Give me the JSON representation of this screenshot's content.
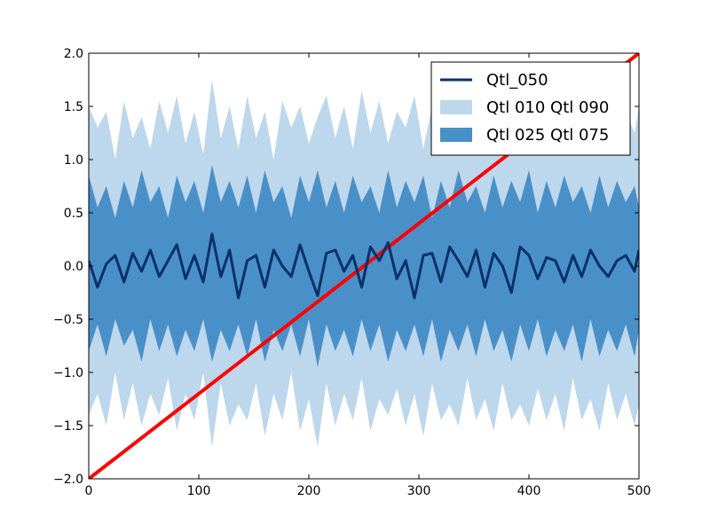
{
  "chart_data": {
    "type": "area",
    "title": "",
    "xlabel": "",
    "ylabel": "",
    "xlim": [
      0,
      500
    ],
    "ylim": [
      -2.0,
      2.0
    ],
    "xticks": [
      0,
      100,
      200,
      300,
      400,
      500
    ],
    "xtick_labels": [
      "0",
      "100",
      "200",
      "300",
      "400",
      "500"
    ],
    "yticks": [
      -2.0,
      -1.5,
      -1.0,
      -0.5,
      0.0,
      0.5,
      1.0,
      1.5,
      2.0
    ],
    "ytick_labels": [
      "−2.0",
      "−1.5",
      "−1.0",
      "−0.5",
      "0.0",
      "0.5",
      "1.0",
      "1.5",
      "2.0"
    ],
    "grid": false,
    "legend_position": "top-right",
    "series": [
      {
        "name": "Qtl_050",
        "kind": "line",
        "color": "#08306b",
        "x": [
          0,
          8,
          16,
          24,
          32,
          40,
          48,
          56,
          64,
          72,
          80,
          88,
          96,
          104,
          112,
          120,
          128,
          136,
          144,
          152,
          160,
          168,
          176,
          184,
          192,
          200,
          208,
          216,
          224,
          232,
          240,
          248,
          256,
          264,
          272,
          280,
          288,
          296,
          304,
          312,
          320,
          328,
          336,
          344,
          352,
          360,
          368,
          376,
          384,
          392,
          400,
          408,
          416,
          424,
          432,
          440,
          448,
          456,
          464,
          472,
          480,
          488,
          496,
          500
        ],
        "values": [
          0.05,
          -0.2,
          0.02,
          0.1,
          -0.15,
          0.12,
          -0.05,
          0.15,
          -0.1,
          0.05,
          0.2,
          -0.12,
          0.1,
          -0.15,
          0.3,
          -0.1,
          0.15,
          -0.3,
          0.05,
          0.1,
          -0.2,
          0.15,
          0.0,
          -0.1,
          0.2,
          -0.05,
          -0.28,
          0.12,
          0.15,
          -0.05,
          0.1,
          -0.2,
          0.18,
          0.05,
          0.22,
          -0.12,
          0.05,
          -0.3,
          0.1,
          0.12,
          -0.15,
          0.18,
          0.05,
          -0.1,
          0.15,
          -0.2,
          0.12,
          0.0,
          -0.25,
          0.18,
          0.1,
          -0.12,
          0.08,
          0.05,
          -0.15,
          0.1,
          -0.1,
          0.15,
          0.0,
          -0.1,
          0.05,
          0.1,
          -0.05,
          0.15
        ]
      },
      {
        "name": "Qtl 010 Qtl 090",
        "kind": "band",
        "color": "#bdd7ec",
        "x": [
          0,
          8,
          16,
          24,
          32,
          40,
          48,
          56,
          64,
          72,
          80,
          88,
          96,
          104,
          112,
          120,
          128,
          136,
          144,
          152,
          160,
          168,
          176,
          184,
          192,
          200,
          208,
          216,
          224,
          232,
          240,
          248,
          256,
          264,
          272,
          280,
          288,
          296,
          304,
          312,
          320,
          328,
          336,
          344,
          352,
          360,
          368,
          376,
          384,
          392,
          400,
          408,
          416,
          424,
          432,
          440,
          448,
          456,
          464,
          472,
          480,
          488,
          496,
          500
        ],
        "upper": [
          1.5,
          1.3,
          1.45,
          1.0,
          1.55,
          1.2,
          1.4,
          1.1,
          1.55,
          1.25,
          1.6,
          1.15,
          1.45,
          1.05,
          1.75,
          1.2,
          1.5,
          1.1,
          1.6,
          1.2,
          1.45,
          1.0,
          1.55,
          1.3,
          1.5,
          1.15,
          1.4,
          1.6,
          1.2,
          1.5,
          1.1,
          1.65,
          1.25,
          1.55,
          1.15,
          1.45,
          1.3,
          1.6,
          1.1,
          1.5,
          1.25,
          1.55,
          1.05,
          1.45,
          1.35,
          1.6,
          1.15,
          1.5,
          1.2,
          1.55,
          1.1,
          1.45,
          1.3,
          1.55,
          1.2,
          1.5,
          1.05,
          1.45,
          1.3,
          1.55,
          1.15,
          1.45,
          1.25,
          1.5
        ],
        "lower": [
          -1.4,
          -1.2,
          -1.5,
          -1.0,
          -1.45,
          -1.1,
          -1.5,
          -1.2,
          -1.4,
          -1.05,
          -1.55,
          -1.2,
          -1.45,
          -1.0,
          -1.7,
          -1.1,
          -1.5,
          -1.3,
          -1.45,
          -1.1,
          -1.6,
          -1.2,
          -1.45,
          -1.0,
          -1.55,
          -1.25,
          -1.7,
          -1.1,
          -1.5,
          -1.2,
          -1.45,
          -1.05,
          -1.55,
          -1.25,
          -1.4,
          -1.15,
          -1.5,
          -1.2,
          -1.6,
          -1.1,
          -1.45,
          -1.3,
          -1.5,
          -1.05,
          -1.45,
          -1.25,
          -1.55,
          -1.1,
          -1.45,
          -1.3,
          -1.5,
          -1.15,
          -1.45,
          -1.2,
          -1.55,
          -1.05,
          -1.45,
          -1.25,
          -1.55,
          -1.1,
          -1.45,
          -1.2,
          -1.5,
          -1.3
        ]
      },
      {
        "name": "Qtl 025 Qtl 075",
        "kind": "band",
        "color": "#4a90c8",
        "x": [
          0,
          8,
          16,
          24,
          32,
          40,
          48,
          56,
          64,
          72,
          80,
          88,
          96,
          104,
          112,
          120,
          128,
          136,
          144,
          152,
          160,
          168,
          176,
          184,
          192,
          200,
          208,
          216,
          224,
          232,
          240,
          248,
          256,
          264,
          272,
          280,
          288,
          296,
          304,
          312,
          320,
          328,
          336,
          344,
          352,
          360,
          368,
          376,
          384,
          392,
          400,
          408,
          416,
          424,
          432,
          440,
          448,
          456,
          464,
          472,
          480,
          488,
          496,
          500
        ],
        "upper": [
          0.85,
          0.55,
          0.75,
          0.45,
          0.8,
          0.55,
          0.9,
          0.6,
          0.75,
          0.45,
          0.85,
          0.6,
          0.8,
          0.5,
          0.95,
          0.6,
          0.8,
          0.55,
          0.85,
          0.5,
          0.9,
          0.6,
          0.75,
          0.45,
          0.85,
          0.6,
          0.9,
          0.55,
          0.8,
          0.5,
          0.85,
          0.6,
          0.75,
          0.5,
          0.9,
          0.55,
          0.8,
          0.6,
          0.85,
          0.45,
          0.8,
          0.55,
          0.9,
          0.6,
          0.75,
          0.5,
          0.85,
          0.55,
          0.8,
          0.6,
          0.9,
          0.5,
          0.8,
          0.55,
          0.85,
          0.6,
          0.75,
          0.5,
          0.85,
          0.55,
          0.8,
          0.6,
          0.75,
          0.55
        ],
        "lower": [
          -0.8,
          -0.55,
          -0.85,
          -0.5,
          -0.75,
          -0.6,
          -0.9,
          -0.5,
          -0.8,
          -0.55,
          -0.85,
          -0.6,
          -0.8,
          -0.5,
          -0.9,
          -0.6,
          -0.8,
          -0.55,
          -0.85,
          -0.5,
          -0.9,
          -0.6,
          -0.8,
          -0.55,
          -0.85,
          -0.5,
          -0.95,
          -0.55,
          -0.8,
          -0.6,
          -0.85,
          -0.5,
          -0.8,
          -0.55,
          -0.9,
          -0.6,
          -0.8,
          -0.55,
          -0.85,
          -0.5,
          -0.9,
          -0.6,
          -0.8,
          -0.55,
          -0.85,
          -0.5,
          -0.8,
          -0.6,
          -0.9,
          -0.55,
          -0.8,
          -0.5,
          -0.85,
          -0.6,
          -0.8,
          -0.55,
          -0.9,
          -0.5,
          -0.85,
          -0.6,
          -0.8,
          -0.55,
          -0.85,
          -0.6
        ]
      },
      {
        "name": "",
        "kind": "line",
        "color": "#ff0000",
        "x": [
          0,
          500
        ],
        "values": [
          -2.0,
          2.0
        ]
      }
    ],
    "legend": [
      {
        "label": "Qtl_050",
        "swatch": "line",
        "color": "#08306b"
      },
      {
        "label": "Qtl 010 Qtl 090",
        "swatch": "patch",
        "color": "#bdd7ec"
      },
      {
        "label": "Qtl 025 Qtl 075",
        "swatch": "patch",
        "color": "#4a90c8"
      }
    ]
  }
}
